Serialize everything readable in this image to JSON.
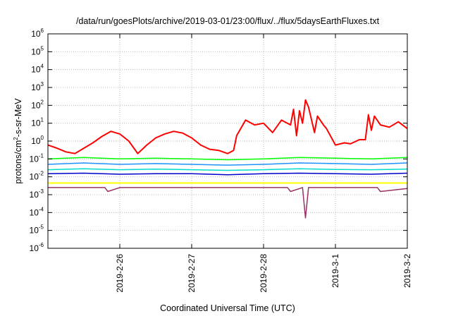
{
  "chart_data": {
    "type": "line",
    "title": "/data/run/goesPlots/archive/2019-03-01/23:00/flux/../flux/5daysEarthFluxes.txt",
    "xlabel": "Coordinated Universal Time (UTC)",
    "ylabel": "protons/cm²-s-sr-MeV",
    "ylabel_parts": {
      "prefix": "protons/cm",
      "sup": "2",
      "suffix": "-s-sr-MeV"
    },
    "y_scale": "log",
    "y_ticks": [
      {
        "base": "10",
        "exp": "-6",
        "value": 1e-06
      },
      {
        "base": "10",
        "exp": "-5",
        "value": 1e-05
      },
      {
        "base": "10",
        "exp": "-4",
        "value": 0.0001
      },
      {
        "base": "10",
        "exp": "-3",
        "value": 0.001
      },
      {
        "base": "10",
        "exp": "-2",
        "value": 0.01
      },
      {
        "base": "10",
        "exp": "-1",
        "value": 0.1
      },
      {
        "base": "10",
        "exp": "0",
        "value": 1
      },
      {
        "base": "10",
        "exp": "1",
        "value": 10
      },
      {
        "base": "10",
        "exp": "2",
        "value": 100
      },
      {
        "base": "10",
        "exp": "3",
        "value": 1000
      },
      {
        "base": "10",
        "exp": "4",
        "value": 10000
      },
      {
        "base": "10",
        "exp": "5",
        "value": 100000
      },
      {
        "base": "10",
        "exp": "6",
        "value": 1000000
      }
    ],
    "ylim": [
      1e-06,
      1000000.0
    ],
    "x_ticks": [
      {
        "label": "2019-2-26",
        "value": "2019-02-26"
      },
      {
        "label": "2019-2-27",
        "value": "2019-02-27"
      },
      {
        "label": "2019-2-28",
        "value": "2019-02-28"
      },
      {
        "label": "2019-3-1",
        "value": "2019-03-01"
      },
      {
        "label": "2019-3-2",
        "value": "2019-03-02"
      }
    ],
    "xlim": [
      "2019-02-25T00:00",
      "2019-03-02T00:00"
    ],
    "grid": true,
    "legend": "none",
    "series": [
      {
        "color": "#ff0000",
        "width": 2,
        "x": [
          "2019-02-25T00:00",
          "2019-02-25T03:00",
          "2019-02-25T06:00",
          "2019-02-25T09:00",
          "2019-02-25T12:00",
          "2019-02-25T15:00",
          "2019-02-25T18:00",
          "2019-02-25T21:00",
          "2019-02-26T00:00",
          "2019-02-26T03:00",
          "2019-02-26T06:00",
          "2019-02-26T09:00",
          "2019-02-26T12:00",
          "2019-02-26T15:00",
          "2019-02-26T18:00",
          "2019-02-26T21:00",
          "2019-02-27T00:00",
          "2019-02-27T03:00",
          "2019-02-27T06:00",
          "2019-02-27T09:00",
          "2019-02-27T12:00",
          "2019-02-27T14:00",
          "2019-02-27T15:00",
          "2019-02-27T18:00",
          "2019-02-27T21:00",
          "2019-02-28T00:00",
          "2019-02-28T03:00",
          "2019-02-28T06:00",
          "2019-02-28T09:00",
          "2019-02-28T10:00",
          "2019-02-28T11:00",
          "2019-02-28T12:00",
          "2019-02-28T13:00",
          "2019-02-28T14:00",
          "2019-02-28T15:00",
          "2019-02-28T17:00",
          "2019-02-28T18:00",
          "2019-02-28T20:00",
          "2019-02-28T21:00",
          "2019-03-01T00:00",
          "2019-03-01T03:00",
          "2019-03-01T05:00",
          "2019-03-01T08:00",
          "2019-03-01T10:00",
          "2019-03-01T11:00",
          "2019-03-01T12:00",
          "2019-03-01T13:00",
          "2019-03-01T15:00",
          "2019-03-01T18:00",
          "2019-03-01T21:00",
          "2019-03-02T00:00"
        ],
        "values": [
          0.6,
          0.4,
          0.25,
          0.2,
          0.4,
          0.8,
          1.8,
          3.5,
          2.5,
          1.0,
          0.2,
          0.6,
          1.5,
          2.5,
          3.5,
          2.8,
          1.5,
          0.6,
          0.35,
          0.3,
          0.2,
          0.3,
          2,
          15,
          8,
          10,
          3,
          15,
          8,
          60,
          2,
          50,
          10,
          200,
          80,
          3,
          25,
          8,
          5,
          0.6,
          0.8,
          0.7,
          1.2,
          1.2,
          30,
          4,
          25,
          8,
          6,
          12,
          5
        ]
      },
      {
        "color": "#00ff00",
        "width": 1.5,
        "x": [
          "2019-02-25T00:00",
          "2019-02-25T12:00",
          "2019-02-26T00:00",
          "2019-02-26T12:00",
          "2019-02-27T00:00",
          "2019-02-27T12:00",
          "2019-02-28T00:00",
          "2019-02-28T12:00",
          "2019-03-01T00:00",
          "2019-03-01T12:00",
          "2019-03-02T00:00"
        ],
        "values": [
          0.1,
          0.12,
          0.1,
          0.11,
          0.1,
          0.09,
          0.1,
          0.12,
          0.11,
          0.1,
          0.12
        ]
      },
      {
        "color": "#1e90ff",
        "width": 1.5,
        "x": [
          "2019-02-25T00:00",
          "2019-02-25T12:00",
          "2019-02-26T00:00",
          "2019-02-26T12:00",
          "2019-02-27T00:00",
          "2019-02-27T12:00",
          "2019-02-28T00:00",
          "2019-02-28T12:00",
          "2019-03-01T00:00",
          "2019-03-01T12:00",
          "2019-03-02T00:00"
        ],
        "values": [
          0.05,
          0.06,
          0.05,
          0.055,
          0.05,
          0.045,
          0.05,
          0.06,
          0.055,
          0.05,
          0.06
        ]
      },
      {
        "color": "#00ddcc",
        "width": 1.5,
        "x": [
          "2019-02-25T00:00",
          "2019-02-25T12:00",
          "2019-02-26T00:00",
          "2019-02-26T12:00",
          "2019-02-27T00:00",
          "2019-02-27T12:00",
          "2019-02-28T00:00",
          "2019-02-28T12:00",
          "2019-03-01T00:00",
          "2019-03-01T12:00",
          "2019-03-02T00:00"
        ],
        "values": [
          0.025,
          0.028,
          0.025,
          0.027,
          0.025,
          0.023,
          0.025,
          0.028,
          0.026,
          0.025,
          0.027
        ]
      },
      {
        "color": "#0000cc",
        "width": 1.5,
        "x": [
          "2019-02-25T00:00",
          "2019-02-25T12:00",
          "2019-02-26T00:00",
          "2019-02-26T12:00",
          "2019-02-27T00:00",
          "2019-02-27T12:00",
          "2019-02-28T00:00",
          "2019-02-28T12:00",
          "2019-03-01T00:00",
          "2019-03-01T12:00",
          "2019-03-02T00:00"
        ],
        "values": [
          0.015,
          0.016,
          0.014,
          0.015,
          0.015,
          0.013,
          0.015,
          0.016,
          0.015,
          0.014,
          0.016
        ]
      },
      {
        "color": "#ffff00",
        "width": 2,
        "x": [
          "2019-02-25T00:00",
          "2019-02-26T00:00",
          "2019-02-27T00:00",
          "2019-02-28T00:00",
          "2019-02-28T14:00",
          "2019-03-01T00:00",
          "2019-03-02T00:00"
        ],
        "values": [
          0.0045,
          0.0045,
          0.0045,
          0.0045,
          0.0045,
          0.0045,
          0.0045
        ]
      },
      {
        "color": "#993366",
        "width": 1.5,
        "x": [
          "2019-02-25T00:00",
          "2019-02-25T19:00",
          "2019-02-25T20:00",
          "2019-02-26T00:00",
          "2019-02-27T00:00",
          "2019-02-28T00:00",
          "2019-02-28T08:00",
          "2019-02-28T09:00",
          "2019-02-28T13:00",
          "2019-02-28T14:00",
          "2019-02-28T15:00",
          "2019-03-01T00:00",
          "2019-03-01T14:00",
          "2019-03-01T15:00",
          "2019-03-02T00:00"
        ],
        "values": [
          0.0025,
          0.0025,
          0.0015,
          0.0025,
          0.0025,
          0.0025,
          0.0025,
          0.0015,
          0.0025,
          5e-05,
          0.0025,
          0.0025,
          0.0025,
          0.0015,
          0.0022
        ]
      }
    ]
  }
}
